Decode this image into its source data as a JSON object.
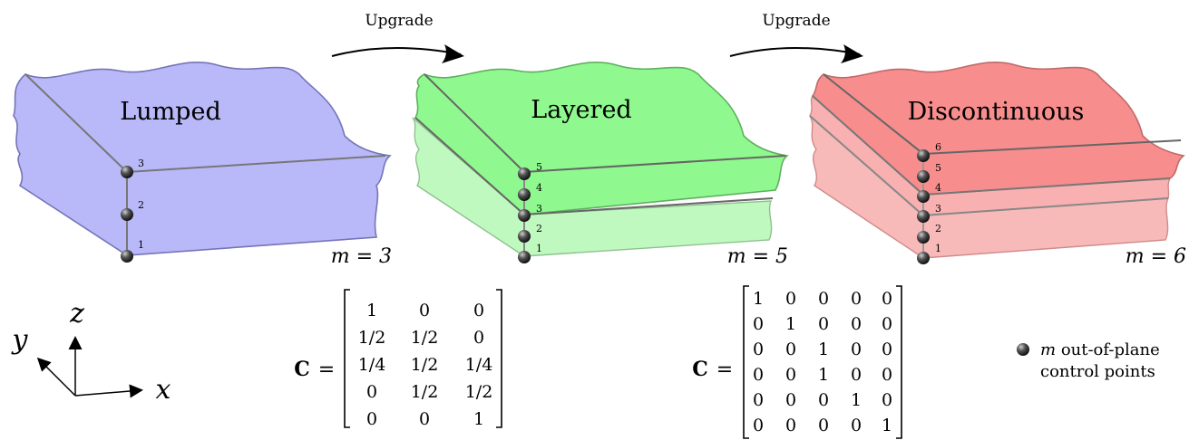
{
  "arrows": {
    "upgrade_1": "Upgrade",
    "upgrade_2": "Upgrade"
  },
  "panels": [
    {
      "title": "Lumped",
      "m_label": "m = 3",
      "control_points": [
        "1",
        "2",
        "3"
      ],
      "color_top": "#b8b8f8",
      "color_bottom": "#b8b8f8"
    },
    {
      "title": "Layered",
      "m_label": "m = 5",
      "control_points": [
        "1",
        "2",
        "3",
        "4",
        "5"
      ],
      "color_top": "#90f890",
      "color_bottom": "#c0f8c0"
    },
    {
      "title": "Discontinuous",
      "m_label": "m = 6",
      "control_points": [
        "1",
        "2",
        "3",
        "4",
        "5",
        "6"
      ],
      "color_top": "#f88c8c",
      "color_bottom": "#f8b8b8"
    }
  ],
  "axes": {
    "x": "x",
    "y": "y",
    "z": "z"
  },
  "matrix_layered": {
    "lhs": "C",
    "eq": "=",
    "rows": [
      [
        "1",
        "0",
        "0"
      ],
      [
        "1/2",
        "1/2",
        "0"
      ],
      [
        "1/4",
        "1/2",
        "1/4"
      ],
      [
        "0",
        "1/2",
        "1/2"
      ],
      [
        "0",
        "0",
        "1"
      ]
    ]
  },
  "matrix_discontinuous": {
    "lhs": "C",
    "eq": "=",
    "rows": [
      [
        "1",
        "0",
        "0",
        "0",
        "0"
      ],
      [
        "0",
        "1",
        "0",
        "0",
        "0"
      ],
      [
        "0",
        "0",
        "1",
        "0",
        "0"
      ],
      [
        "0",
        "0",
        "1",
        "0",
        "0"
      ],
      [
        "0",
        "0",
        "0",
        "1",
        "0"
      ],
      [
        "0",
        "0",
        "0",
        "0",
        "1"
      ]
    ]
  },
  "legend": {
    "symbol": "m",
    "line1": "out-of-plane",
    "line2": "control points"
  }
}
